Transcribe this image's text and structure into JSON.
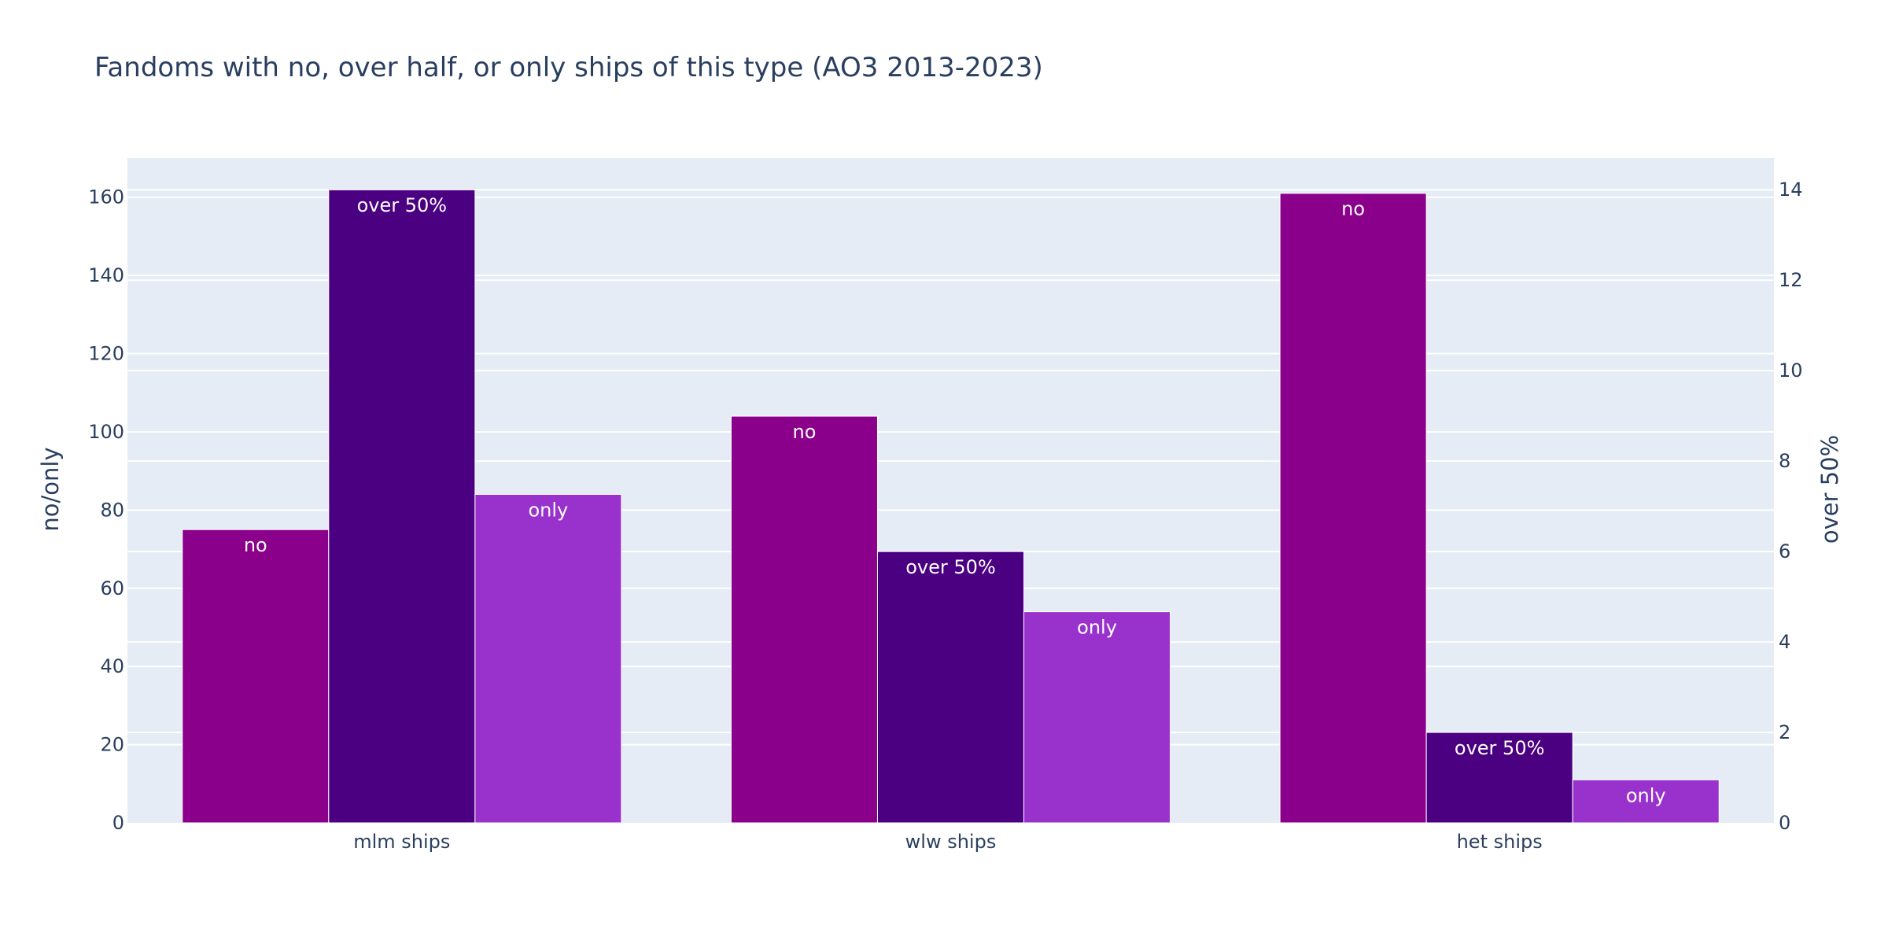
{
  "chart_data": {
    "type": "bar",
    "title": "Fandoms with no, over half, or only ships of this type (AO3 2013-2023)",
    "categories": [
      "mlm ships",
      "wlw ships",
      "het ships"
    ],
    "y_left": {
      "label": "no/only",
      "range": [
        0,
        170
      ],
      "ticks": [
        0,
        20,
        40,
        60,
        80,
        100,
        120,
        140,
        160
      ]
    },
    "y_right": {
      "label": "over 50%",
      "range": [
        0,
        14.7
      ],
      "ticks": [
        0,
        2,
        4,
        6,
        8,
        10,
        12,
        14
      ]
    },
    "series": [
      {
        "name": "no",
        "axis": "left",
        "color": "#8b008b",
        "values": [
          75,
          104,
          161
        ]
      },
      {
        "name": "over 50%",
        "axis": "right",
        "color": "#4b0082",
        "values": [
          14,
          6,
          2
        ]
      },
      {
        "name": "only",
        "axis": "left",
        "color": "#9932cc",
        "values": [
          84,
          54,
          11
        ]
      }
    ],
    "bar_text": [
      "no",
      "over 50%",
      "only"
    ],
    "background": "#e5ecf6",
    "grid": true,
    "legend": "none"
  }
}
